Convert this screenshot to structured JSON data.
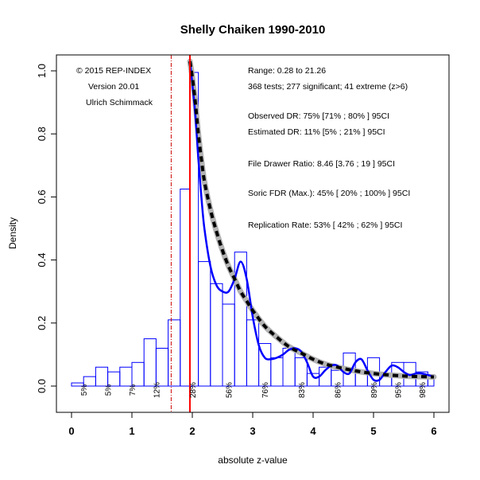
{
  "chart_data": {
    "type": "bar",
    "title": "Shelly Chaiken 1990-2010",
    "xlabel": "absolute z-value",
    "ylabel": "Density",
    "xlim": [
      0,
      6
    ],
    "ylim": [
      -0.1,
      1.05
    ],
    "x_ticks": [
      "0",
      "1",
      "2",
      "3",
      "4",
      "5",
      "6"
    ],
    "y_ticks": [
      "0.0",
      "0.2",
      "0.4",
      "0.6",
      "0.8",
      "1.0"
    ],
    "colors": {
      "histogram": "#0000ff",
      "curve": "#0000ff",
      "fit": "#000000",
      "fit_band": "#b3b3b3",
      "critical_line": "#ff0000",
      "alpha_line": "#cc0000"
    },
    "histogram": {
      "bin_edges": [
        0,
        0.2,
        0.4,
        0.6,
        0.8,
        1.0,
        1.2,
        1.4,
        1.6,
        1.8,
        1.96,
        2.1,
        2.3,
        2.5,
        2.7,
        2.9,
        3.1,
        3.3,
        3.5,
        3.7,
        3.9,
        4.1,
        4.3,
        4.5,
        4.7,
        4.9,
        5.1,
        5.3,
        5.5,
        5.7,
        5.9,
        6.0
      ],
      "values": [
        0.01,
        0.03,
        0.06,
        0.045,
        0.06,
        0.075,
        0.15,
        0.12,
        0.21,
        0.625,
        0.995,
        0.395,
        0.325,
        0.26,
        0.425,
        0.21,
        0.135,
        0.09,
        0.12,
        0.09,
        0.04,
        0.06,
        0.05,
        0.105,
        0.05,
        0.09,
        0.03,
        0.075,
        0.075,
        0.045,
        0.025
      ]
    },
    "density_curve": {
      "x": [
        1.96,
        2.0,
        2.05,
        2.1,
        2.15,
        2.2,
        2.3,
        2.4,
        2.5,
        2.6,
        2.7,
        2.8,
        2.9,
        3.0,
        3.1,
        3.2,
        3.3,
        3.4,
        3.5,
        3.6,
        3.7,
        3.8,
        3.9,
        4.0,
        4.1,
        4.2,
        4.3,
        4.4,
        4.5,
        4.6,
        4.7,
        4.8,
        4.9,
        5.0,
        5.1,
        5.2,
        5.3,
        5.4,
        5.5,
        5.6,
        5.7,
        5.8,
        5.9,
        6.0
      ],
      "y": [
        1.03,
        0.96,
        0.86,
        0.72,
        0.6,
        0.5,
        0.38,
        0.32,
        0.3,
        0.3,
        0.34,
        0.395,
        0.34,
        0.22,
        0.13,
        0.09,
        0.085,
        0.09,
        0.1,
        0.115,
        0.12,
        0.11,
        0.075,
        0.03,
        0.03,
        0.05,
        0.065,
        0.065,
        0.045,
        0.04,
        0.075,
        0.085,
        0.05,
        0.02,
        0.02,
        0.045,
        0.065,
        0.06,
        0.045,
        0.035,
        0.04,
        0.04,
        0.035,
        0.03
      ]
    },
    "fit_curve": {
      "x": [
        1.96,
        2.0,
        2.05,
        2.1,
        2.15,
        2.2,
        2.3,
        2.4,
        2.5,
        2.6,
        2.7,
        2.8,
        2.9,
        3.0,
        3.2,
        3.4,
        3.6,
        3.8,
        4.0,
        4.2,
        4.4,
        4.6,
        4.8,
        5.0,
        5.2,
        5.4,
        5.6,
        5.8,
        6.0
      ],
      "y": [
        1.03,
        0.98,
        0.9,
        0.8,
        0.72,
        0.65,
        0.56,
        0.49,
        0.43,
        0.38,
        0.34,
        0.3,
        0.27,
        0.24,
        0.19,
        0.155,
        0.125,
        0.105,
        0.085,
        0.07,
        0.06,
        0.052,
        0.045,
        0.04,
        0.036,
        0.033,
        0.031,
        0.03,
        0.029
      ]
    },
    "critical_z": 1.96,
    "alpha_z": 1.65,
    "power_labels": [
      {
        "x": 0.2,
        "label": "5%"
      },
      {
        "x": 0.6,
        "label": "5%"
      },
      {
        "x": 1.0,
        "label": "7%"
      },
      {
        "x": 1.4,
        "label": "12%"
      },
      {
        "x": 2.0,
        "label": "28%"
      },
      {
        "x": 2.6,
        "label": "56%"
      },
      {
        "x": 3.2,
        "label": "76%"
      },
      {
        "x": 3.8,
        "label": "83%"
      },
      {
        "x": 4.4,
        "label": "86%"
      },
      {
        "x": 5.0,
        "label": "89%"
      },
      {
        "x": 5.4,
        "label": "95%"
      },
      {
        "x": 5.8,
        "label": "98%"
      }
    ],
    "annotations_left": [
      "© 2015 REP-INDEX",
      "Version 20.01",
      "Ulrich Schimmack"
    ],
    "annotations_right": [
      "Range: 0.28 to 21.26",
      "368 tests; 277 significant; 41 extreme (z>6)",
      "Observed DR: 75% [71% ; 80% ] 95CI",
      "Estimated DR: 11% [5% ; 21% ] 95CI",
      "File Drawer Ratio: 8.46 [3.76 ; 19 ] 95CI",
      "Soric FDR (Max.): 45% [ 20% ; 100% ] 95CI",
      "Replication Rate: 53% [ 42% ; 62% ] 95CI"
    ]
  }
}
